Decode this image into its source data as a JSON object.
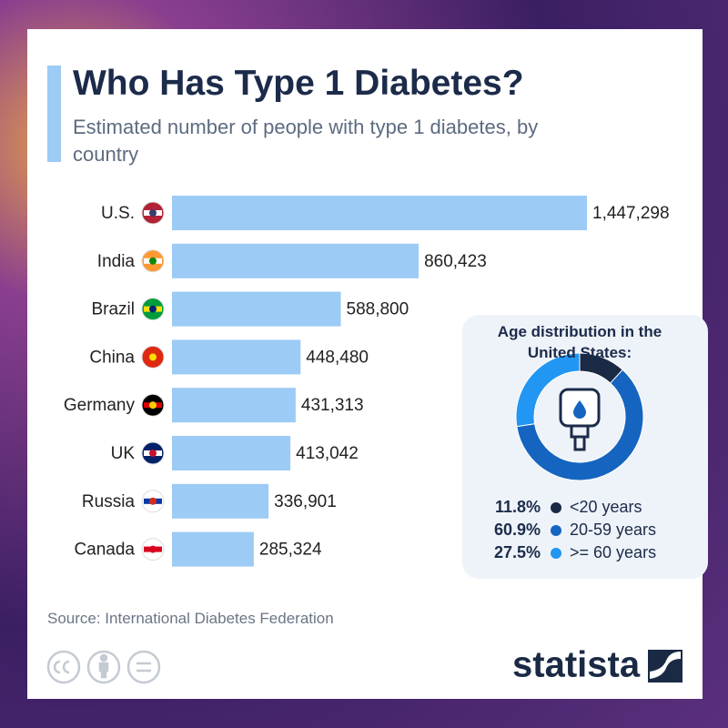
{
  "chart_data": [
    {
      "type": "hbar",
      "title": "Who Has Type 1 Diabetes?",
      "subtitle": "Estimated number of people with type 1 diabetes, by country",
      "categories": [
        "U.S.",
        "India",
        "Brazil",
        "China",
        "Germany",
        "UK",
        "Russia",
        "Canada"
      ],
      "values": [
        1447298,
        860423,
        588800,
        448480,
        431313,
        413042,
        336901,
        285324
      ],
      "value_labels": [
        "1,447,298",
        "860,423",
        "588,800",
        "448,480",
        "431,313",
        "413,042",
        "336,901",
        "285,324"
      ],
      "color": "#9ccbf5",
      "source": "Source: International Diabetes Federation"
    },
    {
      "type": "donut",
      "title": "Age distribution in the United States:",
      "categories": [
        "<20 years",
        "20-59 years",
        ">= 60 years"
      ],
      "values": [
        11.8,
        60.9,
        27.5
      ],
      "value_labels": [
        "11.8%",
        "60.9%",
        "27.5%"
      ],
      "colors": [
        "#1a2a45",
        "#1565c0",
        "#2196f3"
      ]
    }
  ],
  "logo": "statista"
}
